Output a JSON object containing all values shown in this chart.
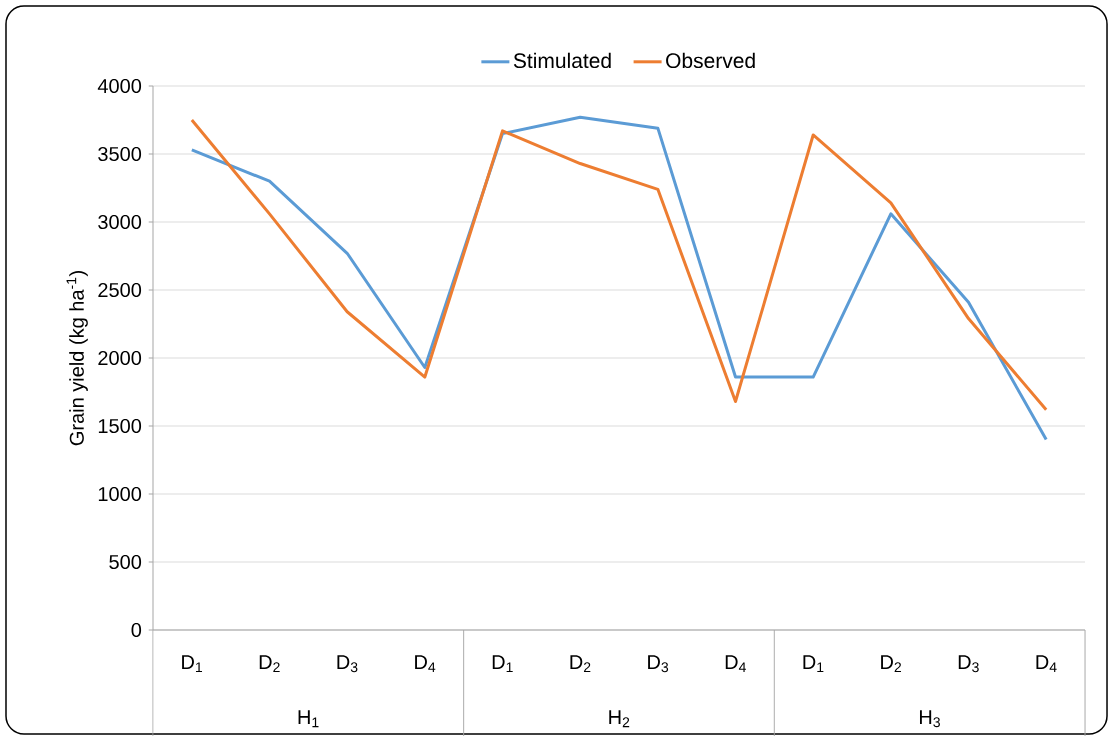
{
  "chart_data": {
    "type": "line",
    "ylabel": "Grain yield (kg ha$^{-1}$)",
    "categories": [
      "D$_{1}$",
      "D$_{2}$",
      "D$_{3}$",
      "D$_{4}$",
      "D$_{1}$",
      "D$_{2}$",
      "D$_{3}$",
      "D$_{4}$",
      "D$_{1}$",
      "D$_{2}$",
      "D$_{3}$",
      "D$_{4}$"
    ],
    "series": [
      {
        "name": "Stimulated",
        "color": "#5b9bd5",
        "values": [
          3530,
          3300,
          2770,
          1930,
          3650,
          3770,
          3690,
          1860,
          1860,
          3060,
          2410,
          1400
        ]
      },
      {
        "name": "Observed",
        "color": "#ed7d31",
        "values": [
          3750,
          3060,
          2340,
          1860,
          3670,
          3430,
          3240,
          1680,
          3640,
          3140,
          2290,
          1620
        ]
      }
    ],
    "annotations": [
      "H$_{1}$",
      "H$_{2}$",
      "H$_{3}$"
    ],
    "ylim": [
      0,
      4000
    ],
    "yticks": [
      0,
      500,
      1000,
      1500,
      2000,
      2500,
      3000,
      3500,
      4000
    ],
    "grid": "y",
    "legend": "top",
    "marker": "none",
    "line_style": "solid"
  }
}
